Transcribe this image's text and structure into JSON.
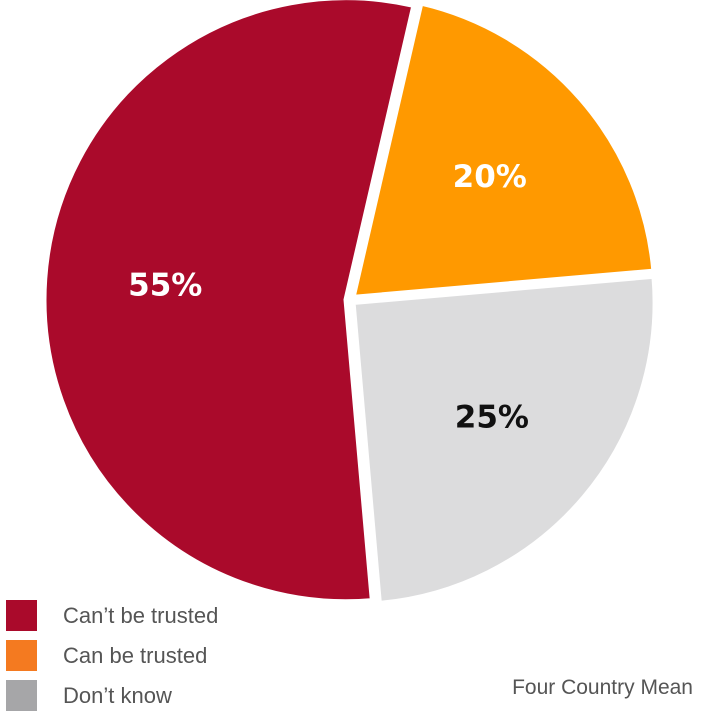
{
  "chart_data": {
    "type": "pie",
    "title": "",
    "slices": [
      {
        "label": "Can be trusted",
        "value": 20,
        "display": "20%",
        "color": "#FF9900",
        "label_color": "#ffffff"
      },
      {
        "label": "Don’t know",
        "value": 25,
        "display": "25%",
        "color": "#DCDCDD",
        "label_color": "#111111"
      },
      {
        "label": "Can’t be trusted",
        "value": 55,
        "display": "55%",
        "color": "#AA0A2B",
        "label_color": "#ffffff"
      }
    ],
    "legend": [
      {
        "label": "Can’t be trusted",
        "color": "#AA0A2B"
      },
      {
        "label": "Can be trusted",
        "color": "#F47A20"
      },
      {
        "label": "Don’t know",
        "color": "#A6A6A8"
      }
    ],
    "legend_position": "bottom-left",
    "note": "Four Country Mean"
  }
}
